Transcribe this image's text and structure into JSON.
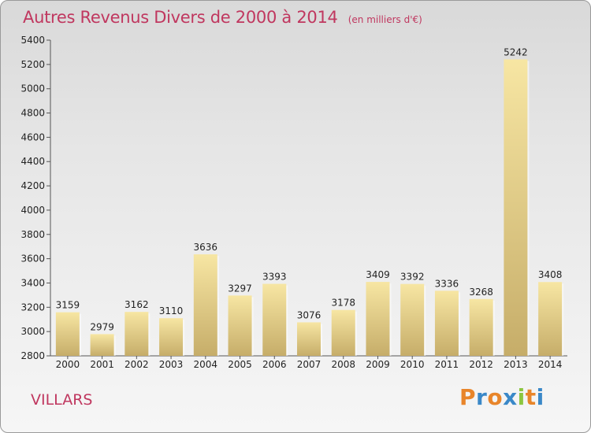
{
  "title": "Autres Revenus Divers de 2000 à 2014",
  "unit": "(en milliers d'€)",
  "location": "VILLARS",
  "logo": "Proxiti",
  "colors": {
    "title": "#c0375f",
    "bar_light": "#f5e3a0",
    "bar_dark": "#c8b06a",
    "logo_letters": [
      "#e8852a",
      "#3a88c8",
      "#e8852a",
      "#3a88c8",
      "#8cc63f",
      "#e8852a",
      "#3a88c8"
    ]
  },
  "chart_data": {
    "type": "bar",
    "title": "Autres Revenus Divers de 2000 à 2014",
    "subtitle": "(en milliers d'€)",
    "categories": [
      "2000",
      "2001",
      "2002",
      "2003",
      "2004",
      "2005",
      "2006",
      "2007",
      "2008",
      "2009",
      "2010",
      "2011",
      "2012",
      "2013",
      "2014"
    ],
    "values": [
      3159,
      2979,
      3162,
      3110,
      3636,
      3297,
      3393,
      3076,
      3178,
      3409,
      3392,
      3336,
      3268,
      5242,
      3408
    ],
    "ylim": [
      2800,
      5400
    ],
    "yticks": [
      2800,
      3000,
      3200,
      3400,
      3600,
      3800,
      4000,
      4200,
      4400,
      4600,
      4800,
      5000,
      5200,
      5400
    ],
    "xlabel": "",
    "ylabel": "",
    "grid": false
  }
}
